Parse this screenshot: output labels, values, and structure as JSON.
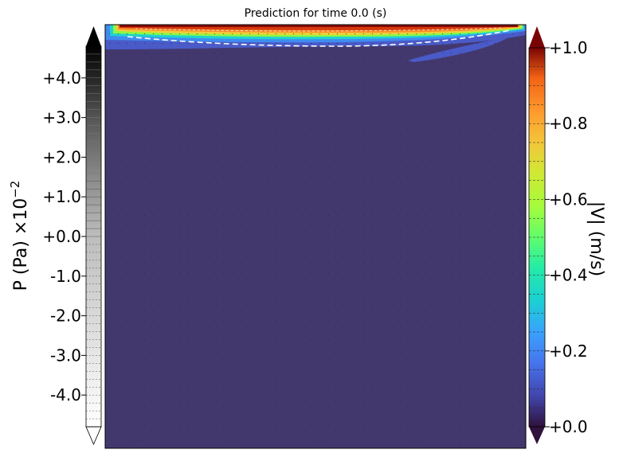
{
  "chart_data": {
    "type": "heatmap",
    "title": "Prediction for time 0.0 (s)",
    "colorbars": [
      {
        "name": "pressure",
        "label_main": "P (Pa) ×10",
        "label_exp": "−2",
        "colormap": "grays (white → black)",
        "ticks": [
          "+4.0",
          "+3.0",
          "+2.0",
          "+1.0",
          "+0.0",
          "-1.0",
          "-2.0",
          "-3.0",
          "-4.0"
        ],
        "range": [
          -4.8,
          4.8
        ],
        "extend": "both",
        "placement": "left"
      },
      {
        "name": "velocity-magnitude",
        "label_main": "|V| (m/s)",
        "colormap": "turbo",
        "ticks": [
          "+1.0",
          "+0.8",
          "+0.6",
          "+0.4",
          "+0.2",
          "+0.0"
        ],
        "range": [
          0.0,
          1.0
        ],
        "extend": "both",
        "placement": "right"
      }
    ],
    "field": {
      "background_value": 0.03,
      "lid_velocity_top": 1.0,
      "description_levels": [
        1.0,
        0.85,
        0.65,
        0.45,
        0.25,
        0.1
      ]
    },
    "grid": false,
    "colors": {
      "background_fill": "#43386e",
      "dashed_contour": "#ffffff"
    }
  }
}
